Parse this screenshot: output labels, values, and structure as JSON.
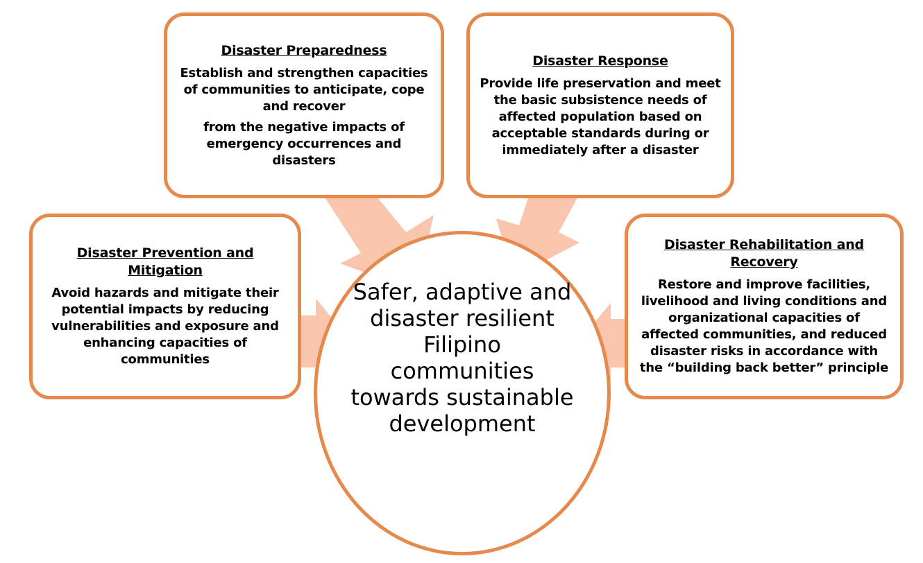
{
  "diagram": {
    "goal": "Safer, adaptive and disaster resilient Filipino communities towards sustainable development",
    "colors": {
      "border": "#e58a4c",
      "arrow": "#f9c6ad"
    },
    "boxes": [
      {
        "title": "Disaster Preparedness",
        "body": [
          "Establish and strengthen capacities of communities to anticipate, cope and recover",
          "from the negative impacts of emergency occurrences and disasters"
        ]
      },
      {
        "title": "Disaster Response",
        "body": [
          "Provide life preservation and meet the basic subsistence needs of affected population based on acceptable standards during or immediately after a disaster"
        ]
      },
      {
        "title": "Disaster Prevention and Mitigation",
        "body": [
          "Avoid hazards and mitigate their potential impacts by reducing vulnerabilities and exposure  and enhancing capacities of communities"
        ]
      },
      {
        "title": "Disaster Rehabilitation and Recovery",
        "body": [
          "Restore and improve facilities, livelihood and living conditions and organizational capacities of affected communities, and reduced disaster risks in accordance with the “building back better” principle"
        ]
      }
    ]
  }
}
